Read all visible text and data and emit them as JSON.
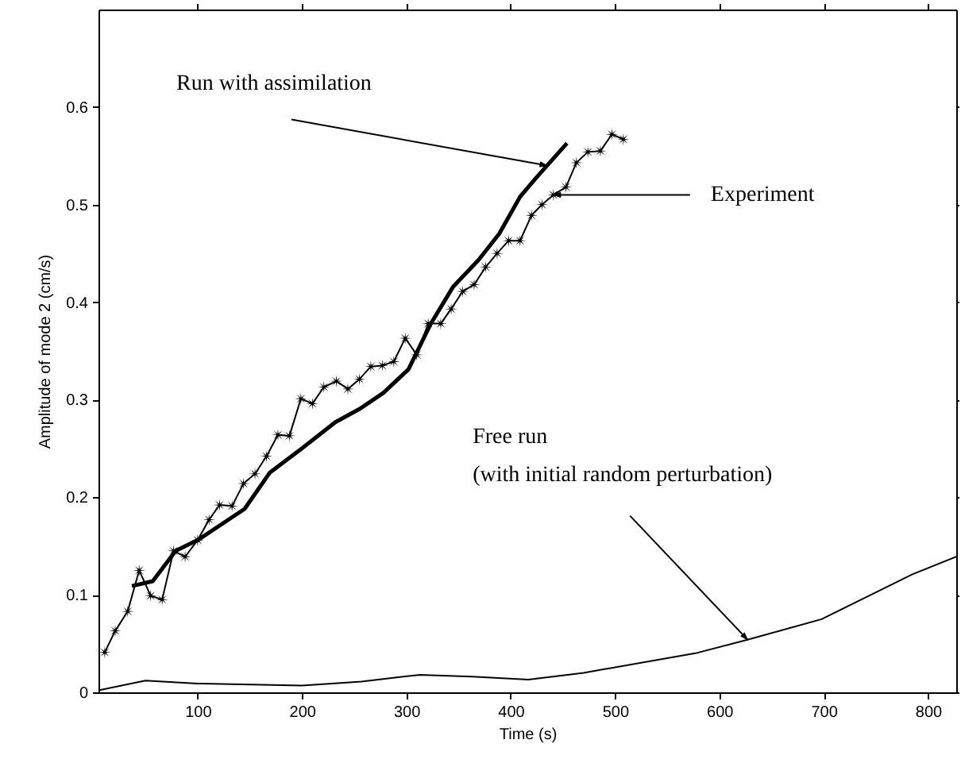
{
  "chart_data": {
    "type": "line",
    "xlabel": "Time (s)",
    "ylabel": "Amplitude of mode 2 (cm/s)",
    "xlim": [
      5,
      827
    ],
    "ylim": [
      0,
      0.7
    ],
    "xticks": [
      100,
      200,
      300,
      400,
      500,
      600,
      700,
      800
    ],
    "yticks": [
      0,
      0.1,
      0.2,
      0.3,
      0.4,
      0.5,
      0.6
    ],
    "grid": false,
    "line_style": "solid",
    "series": [
      {
        "color": "#000000",
        "marker": "star",
        "x": [
          11,
          21,
          33,
          44,
          55,
          66,
          77,
          88,
          100,
          111,
          121,
          133,
          144,
          155,
          166,
          177,
          188,
          199,
          210,
          221,
          233,
          244,
          255,
          266,
          277,
          288,
          299,
          310,
          321,
          333,
          343,
          354,
          365,
          376,
          387,
          398,
          409,
          420,
          430,
          441,
          453,
          463,
          474,
          486,
          497,
          508
        ],
        "values": [
          0.041,
          0.063,
          0.083,
          0.125,
          0.099,
          0.095,
          0.145,
          0.139,
          0.156,
          0.177,
          0.192,
          0.191,
          0.214,
          0.224,
          0.242,
          0.264,
          0.263,
          0.301,
          0.296,
          0.313,
          0.319,
          0.311,
          0.321,
          0.334,
          0.335,
          0.339,
          0.363,
          0.346,
          0.378,
          0.378,
          0.393,
          0.411,
          0.418,
          0.436,
          0.45,
          0.463,
          0.463,
          0.489,
          0.5,
          0.51,
          0.518,
          0.543,
          0.554,
          0.555,
          0.572,
          0.567
        ]
      },
      {
        "color": "#000000",
        "marker": "none",
        "x": [
          37,
          57,
          79,
          100,
          145,
          169,
          200,
          232,
          256,
          278,
          302,
          323,
          345,
          369,
          389,
          409,
          424,
          454
        ],
        "values": [
          0.109,
          0.114,
          0.145,
          0.156,
          0.188,
          0.225,
          0.25,
          0.277,
          0.291,
          0.307,
          0.331,
          0.377,
          0.416,
          0.443,
          0.47,
          0.508,
          0.527,
          0.563
        ]
      },
      {
        "color": "#000000",
        "marker": "none",
        "x": [
          5,
          50,
          100,
          200,
          257,
          313,
          363,
          417,
          470,
          577,
          627,
          698,
          785,
          827
        ],
        "values": [
          0.002,
          0.012,
          0.009,
          0.007,
          0.011,
          0.018,
          0.016,
          0.013,
          0.02,
          0.04,
          0.054,
          0.075,
          0.121,
          0.139
        ]
      }
    ],
    "annotations": [
      {
        "text": "Run with assimilation",
        "x": 435,
        "y": 0.54
      },
      {
        "text": "Experiment",
        "x": 441,
        "y": 0.51
      },
      {
        "text": "Free run\n(with initial random perturbation)",
        "x": 627,
        "y": 0.054
      }
    ]
  }
}
